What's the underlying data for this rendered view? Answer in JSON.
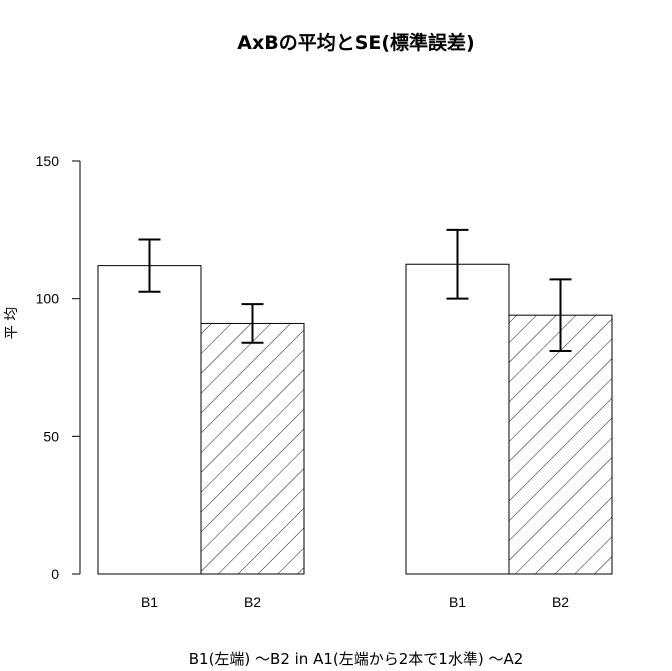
{
  "chart_data": {
    "type": "bar",
    "title": "AxBの平均とSE(標準誤差)",
    "xlabel": "B1(左端) ～B2  in  A1(左端から2本で1水準) ～A2",
    "ylabel": "平 均",
    "ylim": [
      0,
      150
    ],
    "yticks": [
      0,
      50,
      100,
      150
    ],
    "grid": false,
    "groups": [
      "A1",
      "A2"
    ],
    "categories": [
      "B1",
      "B2"
    ],
    "series": [
      {
        "group": "A1",
        "values": [
          112,
          91
        ],
        "se": [
          9.5,
          7
        ]
      },
      {
        "group": "A2",
        "values": [
          112.5,
          94
        ],
        "se": [
          12.5,
          13
        ]
      }
    ],
    "fills": [
      "#ffffff",
      "hatch"
    ],
    "colors": {
      "stroke": "#000000",
      "background": "#ffffff"
    }
  }
}
